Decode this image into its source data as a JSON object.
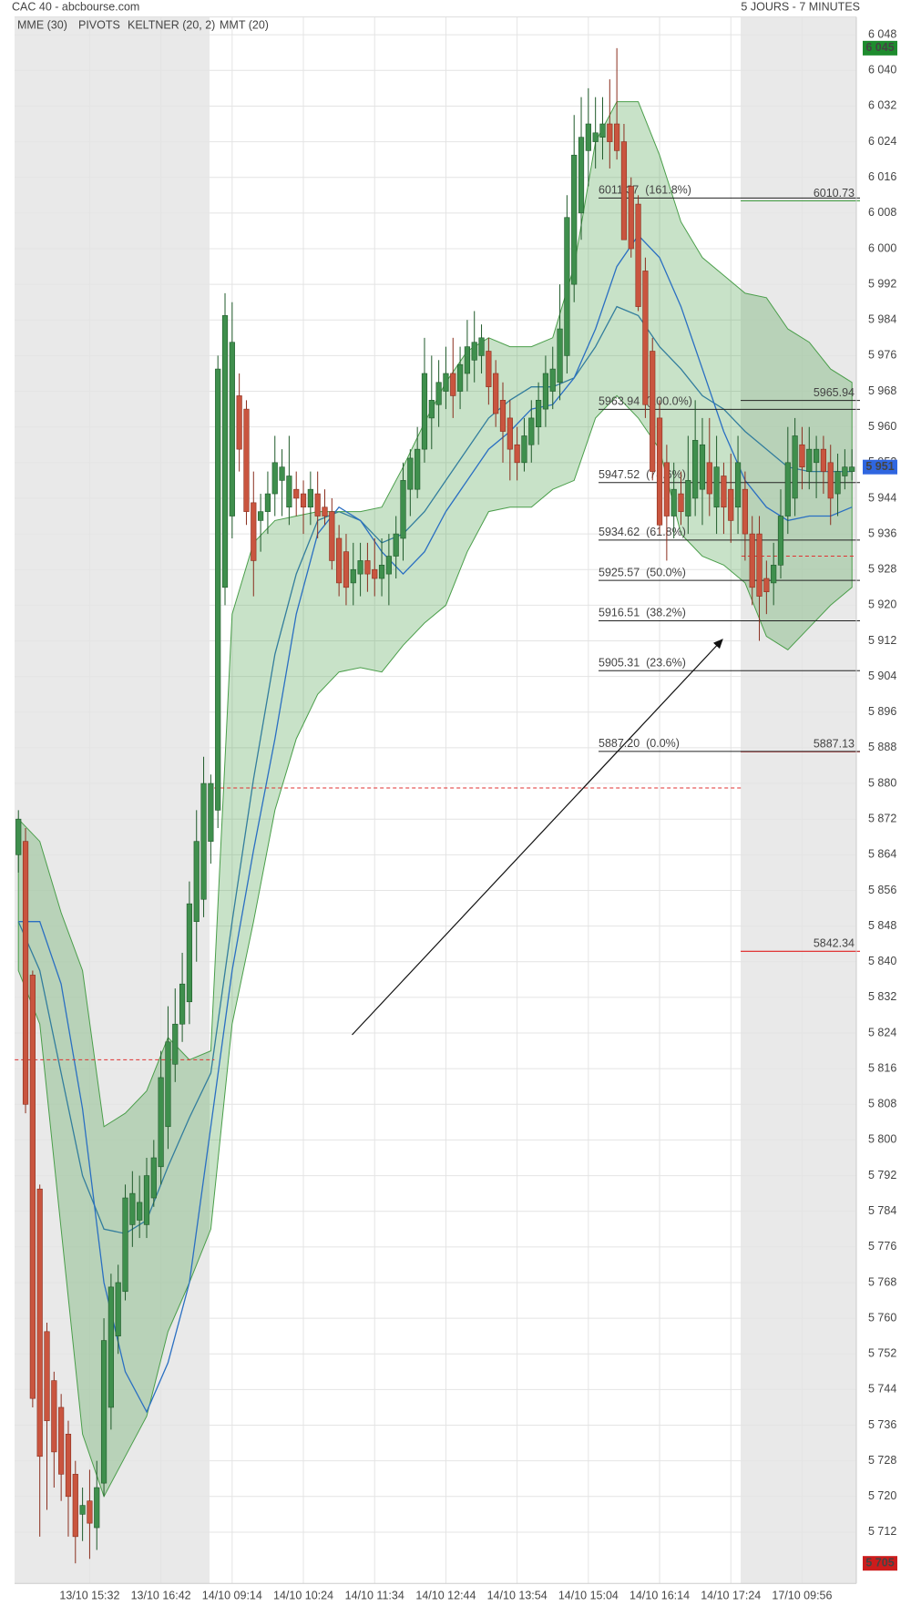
{
  "chart_data": {
    "type": "candlestick",
    "title": "CAC 40 - abcbourse.com",
    "subtitle": "5 JOURS - 7 MINUTES",
    "grid": true,
    "ylim": [
      5700.5,
      6052
    ],
    "yticks": [
      {
        "value": 5712,
        "label": "5 712"
      },
      {
        "value": 5720,
        "label": "5 720"
      },
      {
        "value": 5728,
        "label": "5 728"
      },
      {
        "value": 5736,
        "label": "5 736"
      },
      {
        "value": 5744,
        "label": "5 744"
      },
      {
        "value": 5752,
        "label": "5 752"
      },
      {
        "value": 5760,
        "label": "5 760"
      },
      {
        "value": 5768,
        "label": "5 768"
      },
      {
        "value": 5776,
        "label": "5 776"
      },
      {
        "value": 5784,
        "label": "5 784"
      },
      {
        "value": 5792,
        "label": "5 792"
      },
      {
        "value": 5800,
        "label": "5 800"
      },
      {
        "value": 5808,
        "label": "5 808"
      },
      {
        "value": 5816,
        "label": "5 816"
      },
      {
        "value": 5824,
        "label": "5 824"
      },
      {
        "value": 5832,
        "label": "5 832"
      },
      {
        "value": 5840,
        "label": "5 840"
      },
      {
        "value": 5848,
        "label": "5 848"
      },
      {
        "value": 5856,
        "label": "5 856"
      },
      {
        "value": 5864,
        "label": "5 864"
      },
      {
        "value": 5872,
        "label": "5 872"
      },
      {
        "value": 5880,
        "label": "5 880"
      },
      {
        "value": 5888,
        "label": "5 888"
      },
      {
        "value": 5896,
        "label": "5 896"
      },
      {
        "value": 5904,
        "label": "5 904"
      },
      {
        "value": 5912,
        "label": "5 912"
      },
      {
        "value": 5920,
        "label": "5 920"
      },
      {
        "value": 5928,
        "label": "5 928"
      },
      {
        "value": 5936,
        "label": "5 936"
      },
      {
        "value": 5944,
        "label": "5 944"
      },
      {
        "value": 5952,
        "label": "5 952"
      },
      {
        "value": 5960,
        "label": "5 960"
      },
      {
        "value": 5968,
        "label": "5 968"
      },
      {
        "value": 5976,
        "label": "5 976"
      },
      {
        "value": 5984,
        "label": "5 984"
      },
      {
        "value": 5992,
        "label": "5 992"
      },
      {
        "value": 6000,
        "label": "6 000"
      },
      {
        "value": 6008,
        "label": "6 008"
      },
      {
        "value": 6016,
        "label": "6 016"
      },
      {
        "value": 6024,
        "label": "6 024"
      },
      {
        "value": 6032,
        "label": "6 032"
      },
      {
        "value": 6040,
        "label": "6 040"
      },
      {
        "value": 6048,
        "label": "6 048"
      }
    ],
    "categories": [
      null,
      null,
      null,
      null,
      null,
      null,
      null,
      null,
      null,
      null,
      "13/10 15:32",
      null,
      null,
      null,
      null,
      null,
      null,
      null,
      null,
      null,
      "13/10 16:42",
      null,
      null,
      null,
      null,
      null,
      null,
      null,
      null,
      null,
      "14/10 09:14",
      null,
      null,
      null,
      null,
      null,
      null,
      null,
      null,
      null,
      "14/10 10:24",
      null,
      null,
      null,
      null,
      null,
      null,
      null,
      null,
      null,
      "14/10 11:34",
      null,
      null,
      null,
      null,
      null,
      null,
      null,
      null,
      null,
      "14/10 12:44",
      null,
      null,
      null,
      null,
      null,
      null,
      null,
      null,
      null,
      "14/10 13:54",
      null,
      null,
      null,
      null,
      null,
      null,
      null,
      null,
      null,
      "14/10 15:04",
      null,
      null,
      null,
      null,
      null,
      null,
      null,
      null,
      null,
      "14/10 16:14",
      null,
      null,
      null,
      null,
      null,
      null,
      null,
      null,
      null,
      "14/10 17:24",
      null,
      null,
      null,
      null,
      null,
      null,
      null,
      null,
      null,
      "17/10 09:56",
      null,
      null,
      null,
      null,
      null,
      null,
      null
    ],
    "colors": {
      "up": "#3f8f4d",
      "down": "#c9553f",
      "up_edge": "#1f5a2a",
      "down_edge": "#8a2e1e"
    },
    "open": [
      5864,
      5867,
      5837,
      5789,
      5757,
      5746,
      5740,
      5734,
      5725,
      5716,
      5719,
      5713,
      5723,
      5740,
      5756,
      5766,
      5781,
      5782,
      5781,
      5787,
      5794,
      5803,
      5817,
      5826,
      5831,
      5849,
      5854,
      5867,
      5874,
      5924,
      5940,
      5967,
      5964,
      5943,
      5939,
      5941,
      5945,
      5948,
      5942,
      5946,
      5945,
      5942,
      5945,
      5942,
      5941,
      5935,
      5932,
      5925,
      5927,
      5930,
      5928,
      5926,
      5927,
      5931,
      5935,
      5946,
      5946,
      5955,
      5962,
      5965,
      5968,
      5972,
      5968,
      5972,
      5975,
      5976,
      5977,
      5972,
      5966,
      5962,
      5956,
      5952,
      5956,
      5960,
      5964,
      5968,
      5970,
      5976,
      5992,
      6008,
      6022,
      6024,
      6025,
      6028,
      6028,
      6024,
      6014,
      6010,
      5995,
      5977,
      5962,
      5952,
      5940,
      5945,
      5940,
      5944,
      5946,
      5952,
      5942,
      5949,
      5946,
      5942,
      5946,
      5936,
      5936,
      5926,
      5925,
      5929,
      5940,
      5944,
      5956,
      5950,
      5952,
      5955,
      5952,
      5945,
      5949,
      5950
    ],
    "high": [
      5874,
      5870,
      5838,
      5790,
      5759,
      5748,
      5743,
      5737,
      5728,
      5722,
      5726,
      5728,
      5760,
      5770,
      5772,
      5790,
      5793,
      5792,
      5796,
      5800,
      5820,
      5830,
      5834,
      5842,
      5858,
      5874,
      5886,
      5882,
      5976,
      5990,
      5988,
      5972,
      5966,
      5950,
      5945,
      5950,
      5958,
      5955,
      5958,
      5950,
      5948,
      5950,
      5950,
      5946,
      5944,
      5938,
      5936,
      5934,
      5934,
      5934,
      5935,
      5935,
      5936,
      5940,
      5952,
      5955,
      5960,
      5980,
      5976,
      5975,
      5978,
      5980,
      5978,
      5984,
      5986,
      5983,
      5980,
      5975,
      5970,
      5966,
      5960,
      5962,
      5966,
      5970,
      5976,
      5978,
      5992,
      6012,
      6030,
      6034,
      6036,
      6034,
      6034,
      6038,
      6045,
      6028,
      6016,
      6012,
      5998,
      5980,
      5966,
      5956,
      5952,
      5950,
      5958,
      5966,
      5962,
      5962,
      5958,
      5952,
      5954,
      5958,
      5950,
      5940,
      5940,
      5930,
      5934,
      5946,
      5960,
      5962,
      5960,
      5960,
      5958,
      5958,
      5956,
      5954,
      5955,
      5955
    ],
    "low": [
      5860,
      5806,
      5740,
      5711,
      5717,
      5722,
      5719,
      5711,
      5705,
      5710,
      5706,
      5708,
      5720,
      5735,
      5752,
      5764,
      5776,
      5778,
      5778,
      5785,
      5790,
      5798,
      5813,
      5822,
      5826,
      5840,
      5850,
      5862,
      5870,
      5920,
      5935,
      5950,
      5938,
      5922,
      5932,
      5936,
      5940,
      5940,
      5938,
      5940,
      5936,
      5938,
      5935,
      5938,
      5928,
      5922,
      5920,
      5920,
      5922,
      5923,
      5922,
      5922,
      5920,
      5926,
      5930,
      5940,
      5944,
      5952,
      5955,
      5960,
      5964,
      5962,
      5964,
      5968,
      5970,
      5972,
      5965,
      5960,
      5952,
      5948,
      5948,
      5950,
      5952,
      5956,
      5960,
      5964,
      5966,
      5972,
      5988,
      6002,
      6014,
      6018,
      6020,
      6018,
      6020,
      6002,
      5998,
      5986,
      5962,
      5948,
      5936,
      5930,
      5935,
      5938,
      5936,
      5940,
      5938,
      5940,
      5936,
      5936,
      5934,
      5936,
      5930,
      5920,
      5912,
      5918,
      5920,
      5926,
      5936,
      5940,
      5946,
      5946,
      5944,
      5945,
      5938,
      5940,
      5946,
      5948
    ],
    "close": [
      5872,
      5808,
      5742,
      5729,
      5737,
      5730,
      5725,
      5720,
      5711,
      5718,
      5714,
      5722,
      5755,
      5767,
      5768,
      5787,
      5788,
      5786,
      5792,
      5796,
      5814,
      5822,
      5826,
      5835,
      5853,
      5867,
      5880,
      5880,
      5973,
      5985,
      5979,
      5955,
      5941,
      5930,
      5941,
      5945,
      5952,
      5951,
      5949,
      5944,
      5942,
      5946,
      5940,
      5940,
      5930,
      5925,
      5924,
      5928,
      5930,
      5927,
      5926,
      5929,
      5931,
      5936,
      5948,
      5953,
      5955,
      5972,
      5966,
      5970,
      5972,
      5967,
      5974,
      5978,
      5979,
      5980,
      5969,
      5963,
      5959,
      5955,
      5952,
      5958,
      5962,
      5966,
      5972,
      5973,
      5982,
      6007,
      6021,
      6025,
      6028,
      6026,
      6028,
      6024,
      6022,
      6002,
      6000,
      5987,
      5965,
      5950,
      5938,
      5940,
      5946,
      5941,
      5948,
      5957,
      5956,
      5945,
      5951,
      5942,
      5939,
      5952,
      5936,
      5924,
      5922,
      5923,
      5929,
      5940,
      5952,
      5958,
      5951,
      5955,
      5955,
      5950,
      5944,
      5950,
      5951,
      5951
    ],
    "indicators": [
      {
        "name": "MME (30)",
        "color": "#2a6fc2",
        "values": [
          5849,
          5838,
          5815,
          5792,
          5780,
          5779,
          5782,
          5794,
          5805,
          5815,
          5849,
          5881,
          5909,
          5927,
          5939,
          5941,
          5939,
          5934,
          5936,
          5941,
          5948,
          5955,
          5962,
          5966,
          5969,
          5969,
          5971,
          5978,
          5987,
          5985,
          5978,
          5973,
          5967,
          5964,
          5959,
          5955,
          5951,
          5950,
          5950,
          5950
        ]
      },
      {
        "name": "PIVOTS",
        "color": "#666666",
        "levels": [
          {
            "value": 6010.73,
            "color": "#3c9a3c"
          },
          {
            "value": 5965.94,
            "color": "#222222"
          },
          {
            "value": 5887.13,
            "color": "#e02020"
          },
          {
            "value": 5842.34,
            "color": "#e02020"
          }
        ],
        "daily": [
          5818,
          5879,
          5931
        ],
        "daily_color": "#e03030"
      },
      {
        "name": "KELTNER (20, 2)",
        "color": "#4a9e4a",
        "upper": [
          5872,
          5867,
          5851,
          5838,
          5803,
          5806,
          5811,
          5823,
          5818,
          5820,
          5918,
          5934,
          5939,
          5940,
          5941,
          5941,
          5941,
          5942,
          5951,
          5961,
          5970,
          5977,
          5980,
          5978,
          5978,
          5980,
          5996,
          6024,
          6033,
          6033,
          6021,
          6006,
          5998,
          5994,
          5990,
          5989,
          5982,
          5979,
          5973,
          5970
        ],
        "lower": [
          5838,
          5826,
          5780,
          5734,
          5720,
          5729,
          5738,
          5757,
          5768,
          5780,
          5826,
          5849,
          5874,
          5890,
          5900,
          5905,
          5906,
          5905,
          5911,
          5916,
          5920,
          5932,
          5941,
          5942,
          5942,
          5946,
          5948,
          5962,
          5967,
          5962,
          5955,
          5936,
          5931,
          5929,
          5925,
          5913,
          5910,
          5915,
          5920,
          5924
        ]
      },
      {
        "name": "MMT (20)",
        "color": "#2a6fc2",
        "values": [
          5849,
          5849,
          5835,
          5807,
          5768,
          5748,
          5739,
          5750,
          5768,
          5803,
          5838,
          5865,
          5890,
          5918,
          5936,
          5942,
          5939,
          5932,
          5927,
          5932,
          5941,
          5948,
          5955,
          5959,
          5964,
          5965,
          5971,
          5982,
          5996,
          6003,
          5998,
          5987,
          5973,
          5959,
          5948,
          5942,
          5939,
          5940,
          5940,
          5942
        ]
      }
    ],
    "fibonacci": {
      "color": "#222222",
      "levels": [
        {
          "value": 6011.37,
          "label": "6011.37  (161.8%)"
        },
        {
          "value": 5963.94,
          "label": "5963.94  (100.0%)"
        },
        {
          "value": 5947.52,
          "label": "5947.52  (78.6%)"
        },
        {
          "value": 5934.62,
          "label": "5934.62  (61.8%)"
        },
        {
          "value": 5925.57,
          "label": "5925.57  (50.0%)"
        },
        {
          "value": 5916.51,
          "label": "5916.51  (38.2%)"
        },
        {
          "value": 5905.31,
          "label": "5905.31  (23.6%)"
        },
        {
          "value": 5887.2,
          "label": "5887.20  (0.0%)"
        }
      ]
    },
    "price_tags": [
      {
        "value": 6045,
        "label": "6 045",
        "color": "#1e8c2e"
      },
      {
        "value": 5951,
        "label": "5 951",
        "color": "#2f66e0"
      },
      {
        "value": 5705,
        "label": "5 705",
        "color": "#cc1c1c"
      }
    ]
  }
}
